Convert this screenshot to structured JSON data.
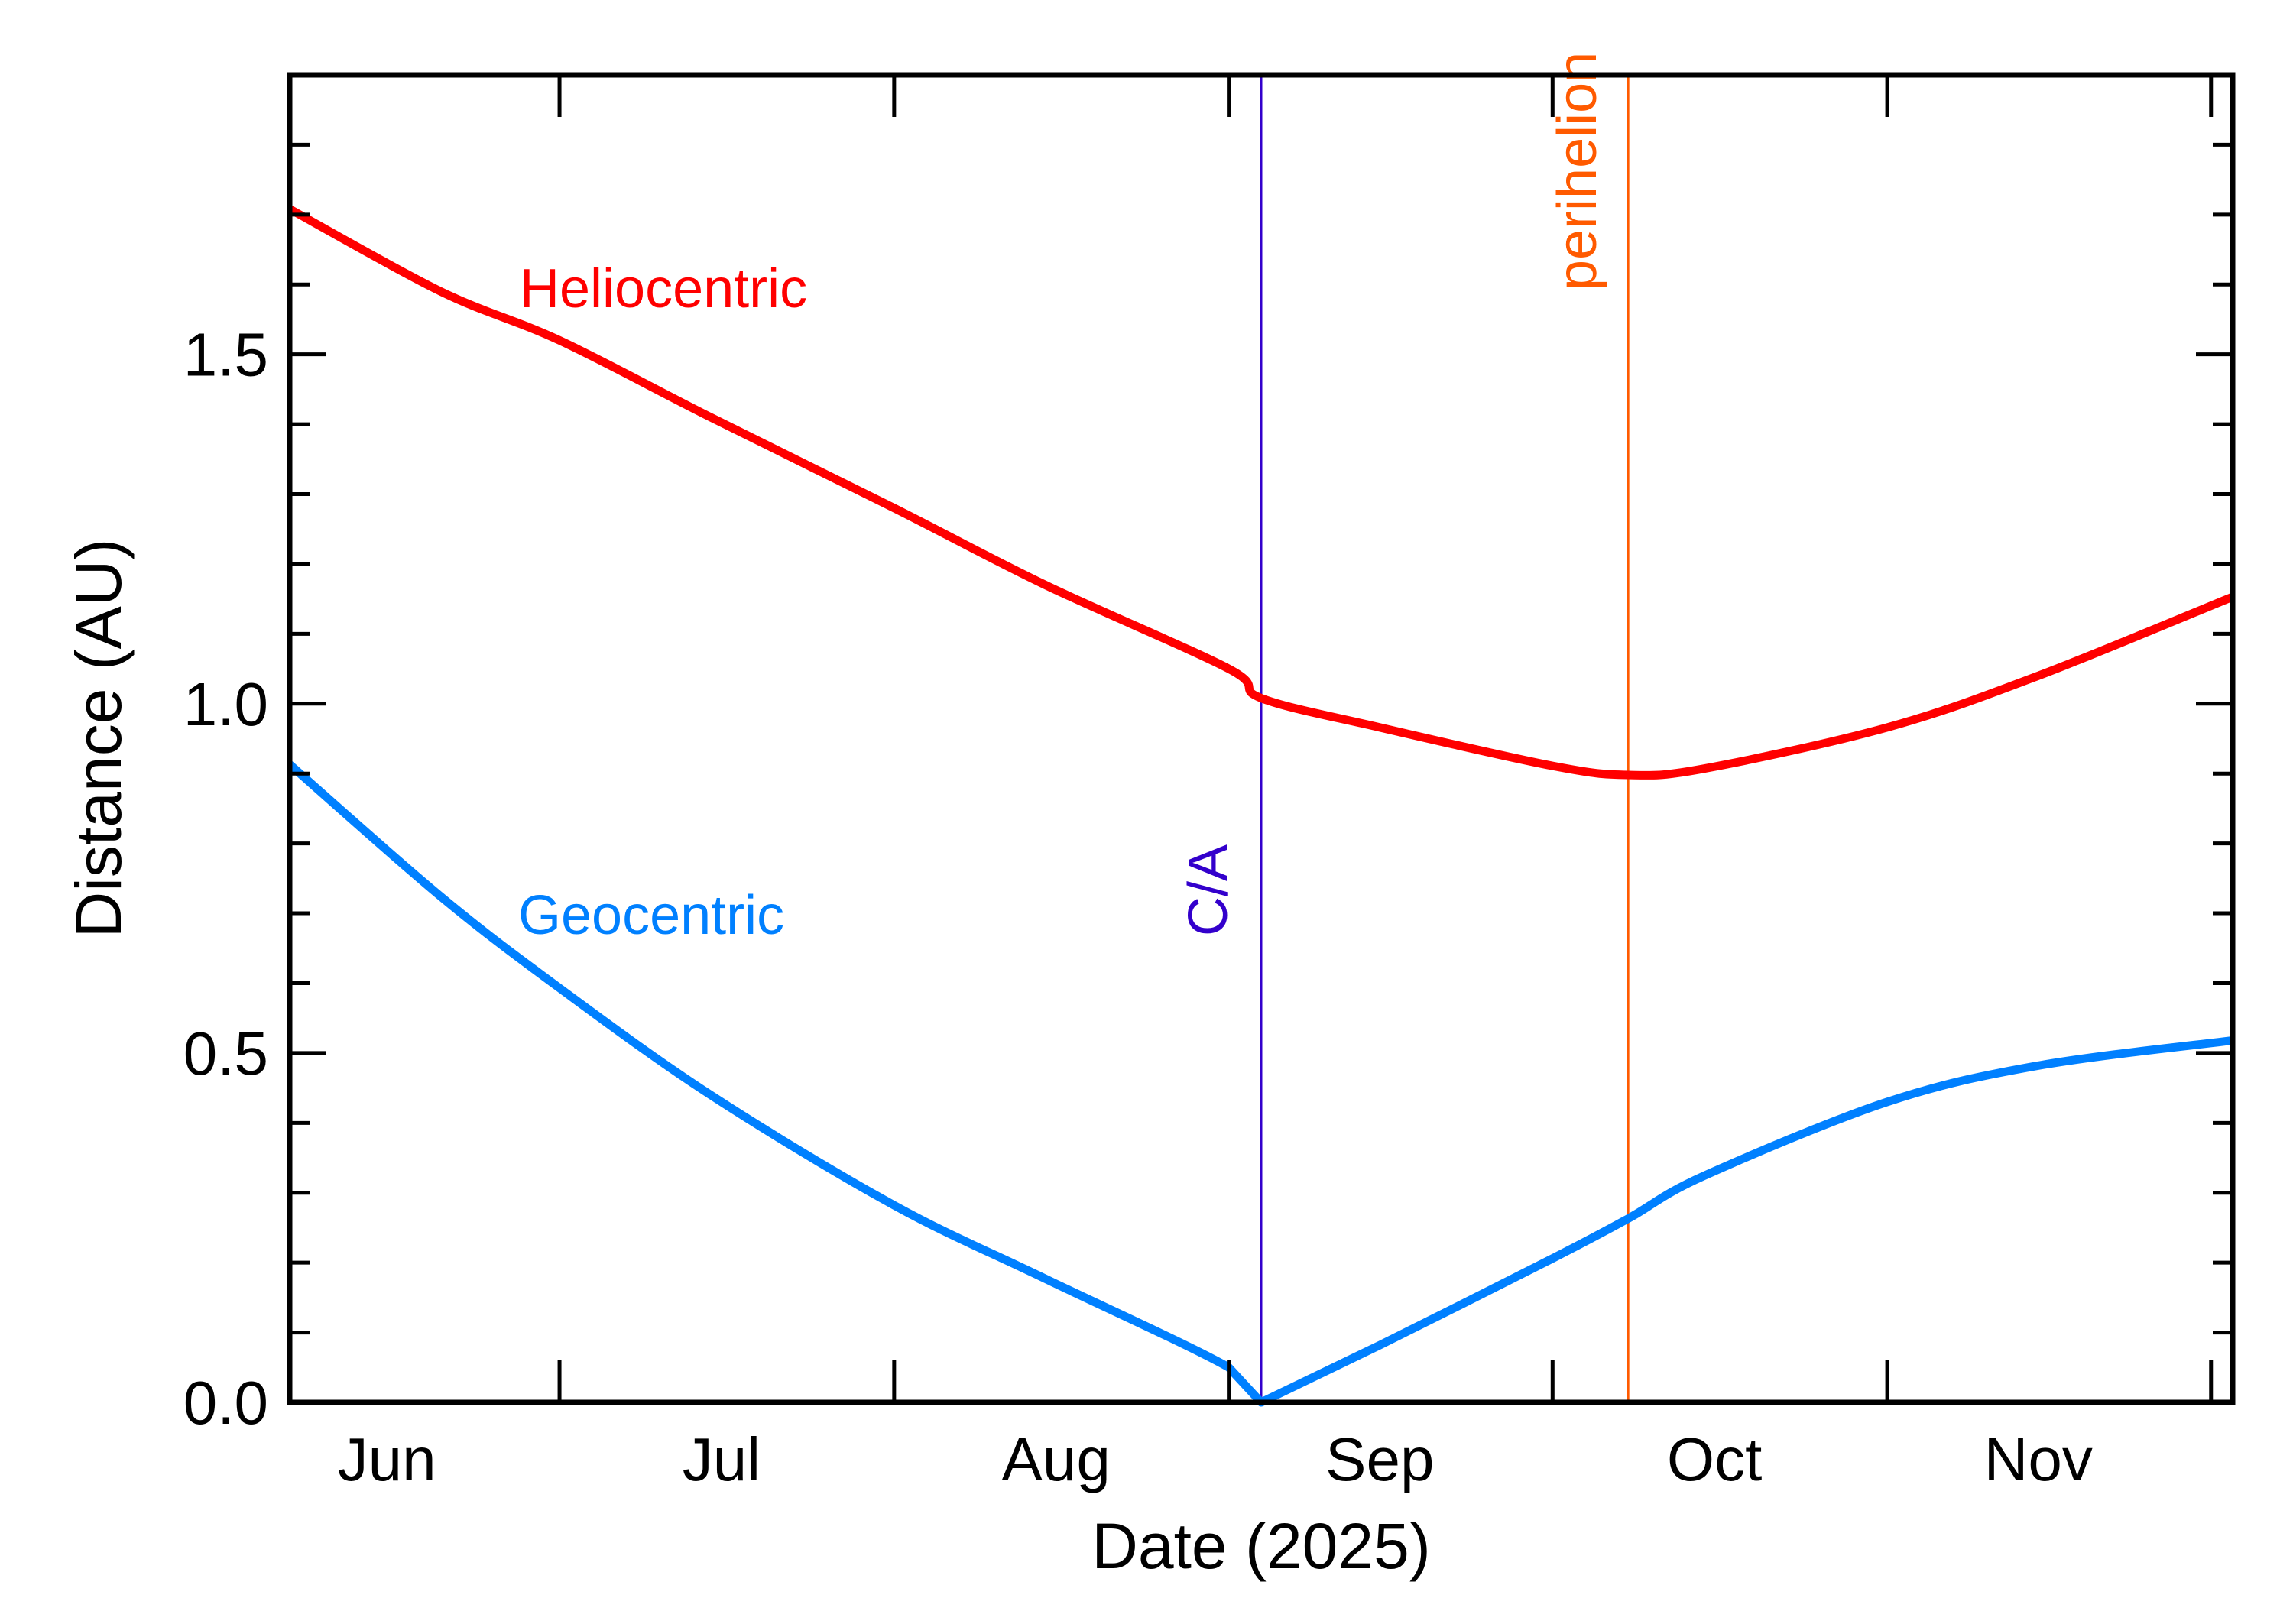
{
  "chart_data": {
    "type": "line",
    "title": "",
    "xlabel": "Date (2025)",
    "ylabel": "Distance (AU)",
    "xlim": [
      "2025-06-06",
      "2025-12-03"
    ],
    "ylim": [
      0,
      1.9
    ],
    "x_tick_labels": [
      {
        "label": "Jun",
        "center": "2025-06-15"
      },
      {
        "label": "Jul",
        "center": "2025-07-16"
      },
      {
        "label": "Aug",
        "center": "2025-08-16"
      },
      {
        "label": "Sep",
        "center": "2025-09-15"
      },
      {
        "label": "Oct",
        "center": "2025-10-16"
      },
      {
        "label": "Nov",
        "center": "2025-11-15"
      }
    ],
    "x_major_ticks": [
      "2025-07-01",
      "2025-08-01",
      "2025-09-01",
      "2025-10-01",
      "2025-11-01",
      "2025-12-01"
    ],
    "y_ticks": [
      0.0,
      0.5,
      1.0,
      1.5
    ],
    "y_tick_labels": [
      "0.0",
      "0.5",
      "1.0",
      "1.5"
    ],
    "y_minor_step": 0.1,
    "grid": false,
    "series": [
      {
        "name": "Heliocentric",
        "color": "#ff0000",
        "points": [
          [
            "2025-06-06",
            1.708
          ],
          [
            "2025-06-20",
            1.59
          ],
          [
            "2025-07-01",
            1.52
          ],
          [
            "2025-07-15",
            1.41
          ],
          [
            "2025-08-01",
            1.28
          ],
          [
            "2025-08-15",
            1.17
          ],
          [
            "2025-09-01",
            1.05
          ],
          [
            "2025-09-04",
            1.008
          ],
          [
            "2025-09-15",
            0.966
          ],
          [
            "2025-10-01",
            0.911
          ],
          [
            "2025-10-08",
            0.898
          ],
          [
            "2025-10-15",
            0.907
          ],
          [
            "2025-11-01",
            0.966
          ],
          [
            "2025-11-15",
            1.04
          ],
          [
            "2025-12-03",
            1.153
          ]
        ]
      },
      {
        "name": "Geocentric",
        "color": "#0080ff",
        "points": [
          [
            "2025-06-06",
            0.913
          ],
          [
            "2025-06-20",
            0.724
          ],
          [
            "2025-07-01",
            0.593
          ],
          [
            "2025-07-15",
            0.44
          ],
          [
            "2025-08-01",
            0.282
          ],
          [
            "2025-08-15",
            0.177
          ],
          [
            "2025-09-01",
            0.05
          ],
          [
            "2025-09-04",
            0.0
          ],
          [
            "2025-09-15",
            0.082
          ],
          [
            "2025-10-01",
            0.206
          ],
          [
            "2025-10-08",
            0.263
          ],
          [
            "2025-10-15",
            0.324
          ],
          [
            "2025-11-01",
            0.43
          ],
          [
            "2025-11-15",
            0.482
          ],
          [
            "2025-12-03",
            0.518
          ]
        ]
      }
    ],
    "annotations": [
      {
        "label": "C/A",
        "date": "2025-09-04",
        "color": "#3300cc"
      },
      {
        "label": "perihelion",
        "date": "2025-10-08",
        "color": "#ff5a00"
      }
    ]
  }
}
